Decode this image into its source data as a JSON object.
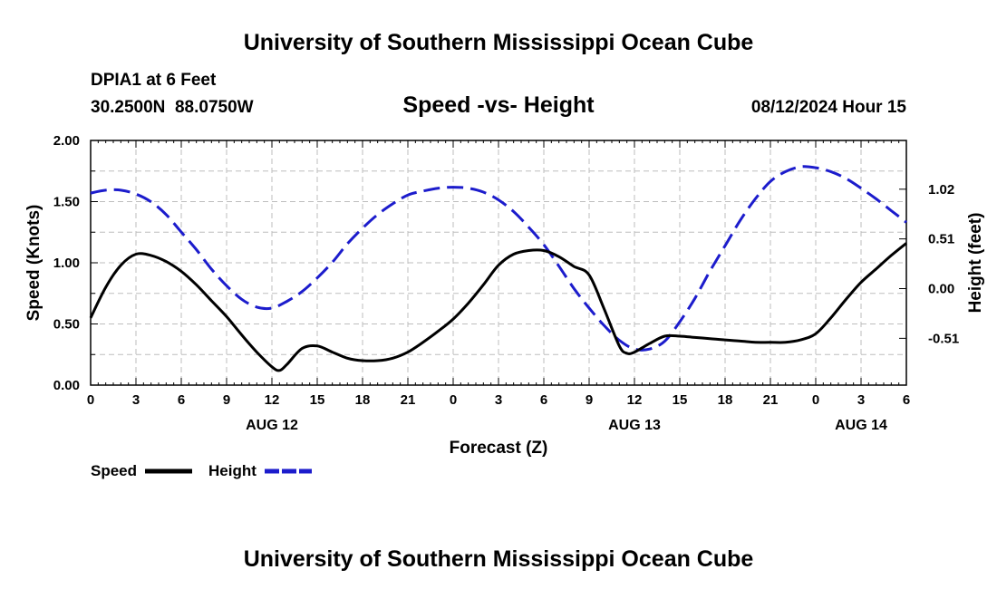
{
  "header": {
    "title": "University of Southern Mississippi Ocean Cube",
    "station": "DPIA1 at 6 Feet",
    "location": "30.2500N  88.0750W",
    "chart_title": "Speed -vs- Height",
    "datetime": "08/12/2024 Hour 15"
  },
  "footer": {
    "title": "University of Southern Mississippi Ocean Cube"
  },
  "chart_data": {
    "type": "line",
    "title": "Speed -vs- Height",
    "xlabel": "Forecast (Z)",
    "ylabel": "Speed (Knots)",
    "y2label": "Height (feet)",
    "x_unit": "hours from 00Z AUG 12",
    "xlim": [
      0,
      54
    ],
    "x_ticks": [
      0,
      3,
      6,
      9,
      12,
      15,
      18,
      21,
      24,
      27,
      30,
      33,
      36,
      39,
      42,
      45,
      48,
      51,
      54
    ],
    "x_tick_labels": [
      "0",
      "3",
      "6",
      "9",
      "12",
      "15",
      "18",
      "21",
      "0",
      "3",
      "6",
      "9",
      "12",
      "15",
      "18",
      "21",
      "0",
      "3",
      "6"
    ],
    "date_labels": [
      {
        "x": 12,
        "label": "AUG 12"
      },
      {
        "x": 36,
        "label": "AUG 13"
      },
      {
        "x": 51,
        "label": "AUG 14"
      }
    ],
    "ylim": [
      0,
      2
    ],
    "y_ticks": [
      0,
      0.5,
      1.0,
      1.5,
      2.0
    ],
    "y_tick_labels": [
      "0.00",
      "0.50",
      "1.00",
      "1.50",
      "2.00"
    ],
    "y2lim": [
      -0.99,
      1.52
    ],
    "y2_ticks": [
      -0.51,
      0,
      0.51,
      1.02
    ],
    "y2_tick_labels": [
      "-0.51",
      "0.00",
      "0.51",
      "1.02"
    ],
    "grid": true,
    "legend": [
      "Speed",
      "Height"
    ],
    "series": [
      {
        "name": "Speed",
        "axis": "left",
        "color": "#000000",
        "style": "solid",
        "x": [
          0,
          1,
          2,
          3,
          4,
          5,
          6,
          7,
          8,
          9,
          10,
          11,
          12,
          12.5,
          13,
          14,
          15,
          16,
          17,
          18,
          19,
          20,
          21,
          22,
          23,
          24,
          25,
          26,
          27,
          28,
          29,
          30,
          31,
          32,
          33,
          34,
          35,
          35.5,
          36,
          37,
          38,
          39,
          40,
          41,
          42,
          43,
          44,
          45,
          46,
          47,
          48,
          49,
          50,
          51,
          52,
          53,
          54
        ],
        "y": [
          0.55,
          0.8,
          0.98,
          1.07,
          1.06,
          1.01,
          0.93,
          0.82,
          0.69,
          0.56,
          0.41,
          0.27,
          0.15,
          0.12,
          0.17,
          0.3,
          0.32,
          0.27,
          0.22,
          0.2,
          0.2,
          0.22,
          0.27,
          0.35,
          0.44,
          0.54,
          0.67,
          0.82,
          0.98,
          1.07,
          1.1,
          1.1,
          1.05,
          0.97,
          0.9,
          0.62,
          0.32,
          0.26,
          0.27,
          0.34,
          0.4,
          0.4,
          0.39,
          0.38,
          0.37,
          0.36,
          0.35,
          0.35,
          0.35,
          0.37,
          0.42,
          0.55,
          0.7,
          0.84,
          0.95,
          1.06,
          1.16
        ]
      },
      {
        "name": "Height",
        "axis": "right",
        "color": "#1c1ccc",
        "style": "dashed",
        "x": [
          0,
          1,
          2,
          3,
          4,
          5,
          6,
          7,
          8,
          9,
          10,
          11,
          12,
          13,
          14,
          15,
          16,
          17,
          18,
          19,
          20,
          21,
          22,
          23,
          24,
          25,
          26,
          27,
          28,
          29,
          30,
          31,
          32,
          33,
          34,
          35,
          36,
          37,
          38,
          39,
          40,
          41,
          42,
          43,
          44,
          45,
          46,
          47,
          48,
          49,
          50,
          51,
          52,
          53,
          54
        ],
        "y": [
          0.98,
          1.01,
          1.01,
          0.97,
          0.89,
          0.76,
          0.58,
          0.4,
          0.2,
          0.03,
          -0.11,
          -0.19,
          -0.2,
          -0.13,
          -0.03,
          0.11,
          0.27,
          0.46,
          0.62,
          0.76,
          0.87,
          0.96,
          1.0,
          1.03,
          1.04,
          1.03,
          0.99,
          0.91,
          0.79,
          0.63,
          0.45,
          0.23,
          0.0,
          -0.2,
          -0.38,
          -0.53,
          -0.62,
          -0.62,
          -0.54,
          -0.34,
          -0.1,
          0.18,
          0.44,
          0.7,
          0.92,
          1.1,
          1.2,
          1.25,
          1.24,
          1.2,
          1.13,
          1.03,
          0.92,
          0.8,
          0.68
        ]
      }
    ]
  }
}
